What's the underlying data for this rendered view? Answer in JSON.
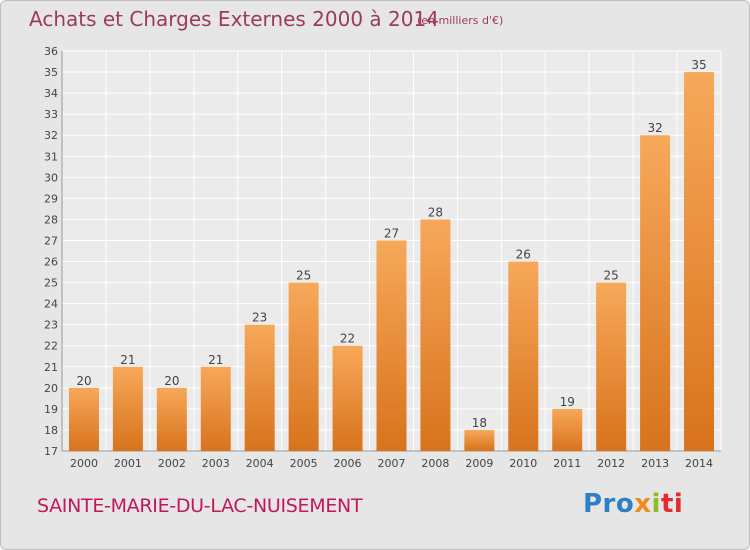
{
  "header": {
    "title": "Achats et Charges Externes 2000 à 2014",
    "subtitle": "(en milliers d'€)"
  },
  "footer": {
    "place": "SAINTE-MARIE-DU-LAC-NUISEMENT",
    "brand": "Proxiti",
    "brand_parts": [
      "Pro",
      "x",
      "i",
      "ti"
    ]
  },
  "colors": {
    "bar": "#f0932f",
    "bar_light": "#f7a85a",
    "bar_dark": "#d8731c",
    "title": "#9c3a5a",
    "place": "#c2185b",
    "background": "#e6e6e6",
    "plot_background": "#ebebeb",
    "grid": "#ffffff"
  },
  "chart_data": {
    "type": "bar",
    "categories": [
      "2000",
      "2001",
      "2002",
      "2003",
      "2004",
      "2005",
      "2006",
      "2007",
      "2008",
      "2009",
      "2010",
      "2011",
      "2012",
      "2013",
      "2014"
    ],
    "values": [
      20,
      21,
      20,
      21,
      23,
      25,
      22,
      27,
      28,
      18,
      26,
      19,
      25,
      32,
      35
    ],
    "ylim": [
      17,
      36
    ],
    "yticks": [
      17,
      18,
      19,
      20,
      21,
      22,
      23,
      24,
      25,
      26,
      27,
      28,
      29,
      30,
      31,
      32,
      33,
      34,
      35,
      36
    ],
    "grid": true,
    "data_labels": true
  }
}
